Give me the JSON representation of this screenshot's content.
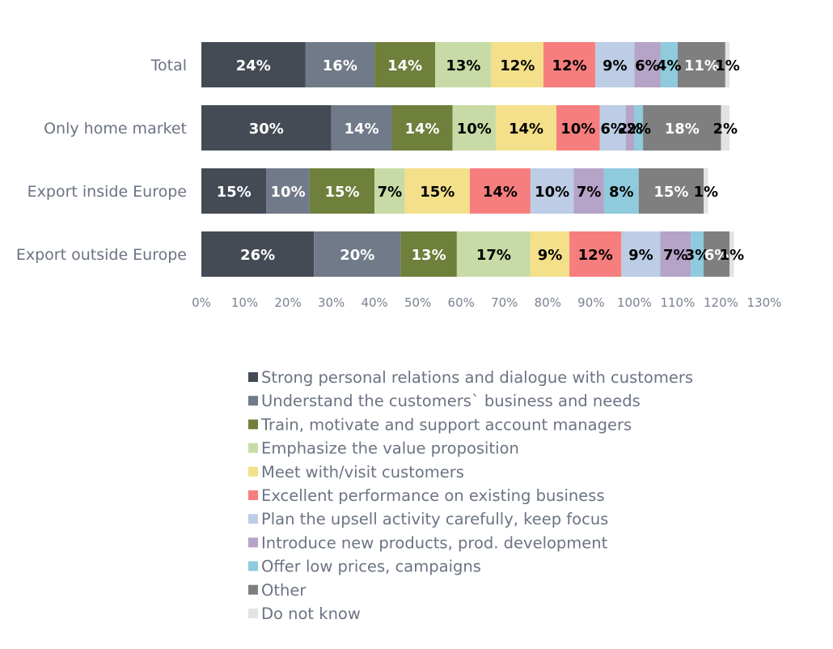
{
  "chart_data": {
    "type": "bar",
    "orientation": "horizontal",
    "stacked": true,
    "categories": [
      "Total",
      "Only home market",
      "Export inside Europe",
      "Export outside Europe"
    ],
    "series": [
      {
        "name": "Strong personal relations and dialogue with customers",
        "color": "#454b55",
        "label_color": "#ffffff",
        "values": [
          24,
          30,
          15,
          26
        ]
      },
      {
        "name": "Understand the customers` business and needs",
        "color": "#717a88",
        "label_color": "#ffffff",
        "values": [
          16,
          14,
          10,
          20
        ]
      },
      {
        "name": "Train, motivate and support account managers",
        "color": "#6f7f3c",
        "label_color": "#ffffff",
        "values": [
          14,
          14,
          15,
          13
        ]
      },
      {
        "name": "Emphasize the value proposition",
        "color": "#c8dba6",
        "label_color": "#000000",
        "values": [
          13,
          10,
          7,
          17
        ]
      },
      {
        "name": "Meet with/visit customers",
        "color": "#f4e08a",
        "label_color": "#000000",
        "values": [
          12,
          14,
          15,
          9
        ]
      },
      {
        "name": "Excellent performance on existing business",
        "color": "#f77e7e",
        "label_color": "#000000",
        "values": [
          12,
          10,
          14,
          12
        ]
      },
      {
        "name": "Plan the upsell activity carefully, keep focus",
        "color": "#bccde5",
        "label_color": "#000000",
        "values": [
          9,
          6,
          10,
          9
        ]
      },
      {
        "name": "Introduce new products, prod. development",
        "color": "#b5a3c8",
        "label_color": "#000000",
        "values": [
          6,
          2,
          7,
          7
        ]
      },
      {
        "name": "Offer low prices, campaigns",
        "color": "#8fcbdc",
        "label_color": "#000000",
        "values": [
          4,
          2,
          8,
          3
        ]
      },
      {
        "name": "Other",
        "color": "#7f7f7f",
        "label_color": "#ffffff",
        "values": [
          11,
          18,
          15,
          6
        ]
      },
      {
        "name": "Do not know",
        "color": "#e3e3e3",
        "label_color": "#000000",
        "values": [
          1,
          2,
          1,
          1
        ]
      }
    ],
    "xlim": [
      0,
      130
    ],
    "x_ticks": [
      "0%",
      "10%",
      "20%",
      "30%",
      "40%",
      "50%",
      "60%",
      "70%",
      "80%",
      "90%",
      "100%",
      "110%",
      "120%",
      "130%"
    ],
    "value_suffix": "%",
    "grid": false,
    "legend_position": "bottom",
    "title": "",
    "xlabel": "",
    "ylabel": ""
  }
}
